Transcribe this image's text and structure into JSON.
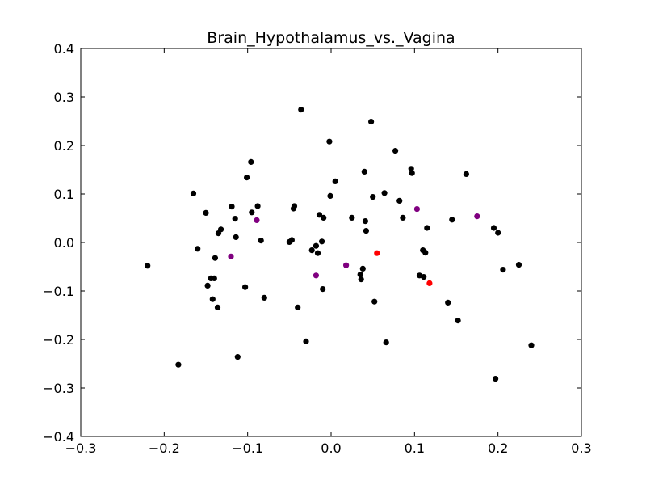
{
  "chart_data": {
    "type": "scatter",
    "title": "Brain_Hypothalamus_vs._Vagina",
    "xlabel": "",
    "ylabel": "",
    "xlim": [
      -0.3,
      0.3
    ],
    "ylim": [
      -0.4,
      0.4
    ],
    "xticks": [
      -0.3,
      -0.2,
      -0.1,
      0.0,
      0.1,
      0.2,
      0.3
    ],
    "yticks": [
      -0.4,
      -0.3,
      -0.2,
      -0.1,
      0.0,
      0.1,
      0.2,
      0.3,
      0.4
    ],
    "xtick_labels": [
      "−0.3",
      "−0.2",
      "−0.1",
      "0.0",
      "0.1",
      "0.2",
      "0.3"
    ],
    "ytick_labels": [
      "−0.4",
      "−0.3",
      "−0.2",
      "−0.1",
      "0.0",
      "0.1",
      "0.2",
      "0.3",
      "0.4"
    ],
    "grid": false,
    "legend": "none",
    "series": [
      {
        "color": "#000000",
        "points": [
          [
            -0.22,
            -0.048
          ],
          [
            -0.183,
            -0.252
          ],
          [
            -0.165,
            0.101
          ],
          [
            -0.16,
            -0.013
          ],
          [
            -0.15,
            0.061
          ],
          [
            -0.148,
            -0.089
          ],
          [
            -0.144,
            -0.074
          ],
          [
            -0.142,
            -0.117
          ],
          [
            -0.14,
            -0.074
          ],
          [
            -0.139,
            -0.032
          ],
          [
            -0.136,
            -0.134
          ],
          [
            -0.135,
            0.019
          ],
          [
            -0.132,
            0.027
          ],
          [
            -0.119,
            0.074
          ],
          [
            -0.115,
            0.049
          ],
          [
            -0.114,
            0.011
          ],
          [
            -0.112,
            -0.236
          ],
          [
            -0.103,
            -0.092
          ],
          [
            -0.101,
            0.134
          ],
          [
            -0.096,
            0.166
          ],
          [
            -0.095,
            0.062
          ],
          [
            -0.088,
            0.075
          ],
          [
            -0.084,
            0.004
          ],
          [
            -0.08,
            -0.114
          ],
          [
            -0.05,
            0.001
          ],
          [
            -0.047,
            0.005
          ],
          [
            -0.045,
            0.07
          ],
          [
            -0.044,
            0.075
          ],
          [
            -0.04,
            -0.134
          ],
          [
            -0.036,
            0.274
          ],
          [
            -0.03,
            -0.204
          ],
          [
            -0.023,
            -0.016
          ],
          [
            -0.018,
            -0.007
          ],
          [
            -0.016,
            -0.022
          ],
          [
            -0.014,
            0.057
          ],
          [
            -0.011,
            0.002
          ],
          [
            -0.009,
            0.051
          ],
          [
            -0.01,
            -0.096
          ],
          [
            -0.002,
            0.208
          ],
          [
            -0.001,
            0.096
          ],
          [
            0.005,
            0.126
          ],
          [
            0.025,
            0.051
          ],
          [
            0.035,
            -0.066
          ],
          [
            0.036,
            -0.076
          ],
          [
            0.038,
            -0.054
          ],
          [
            0.04,
            0.146
          ],
          [
            0.041,
            0.044
          ],
          [
            0.042,
            0.024
          ],
          [
            0.048,
            0.249
          ],
          [
            0.05,
            0.094
          ],
          [
            0.052,
            -0.122
          ],
          [
            0.064,
            0.102
          ],
          [
            0.066,
            -0.206
          ],
          [
            0.077,
            0.189
          ],
          [
            0.082,
            0.086
          ],
          [
            0.086,
            0.051
          ],
          [
            0.096,
            0.152
          ],
          [
            0.097,
            0.143
          ],
          [
            0.106,
            -0.068
          ],
          [
            0.11,
            -0.016
          ],
          [
            0.111,
            -0.071
          ],
          [
            0.113,
            -0.021
          ],
          [
            0.115,
            0.03
          ],
          [
            0.14,
            -0.124
          ],
          [
            0.145,
            0.047
          ],
          [
            0.152,
            -0.161
          ],
          [
            0.162,
            0.141
          ],
          [
            0.195,
            0.03
          ],
          [
            0.197,
            -0.281
          ],
          [
            0.2,
            0.02
          ],
          [
            0.206,
            -0.056
          ],
          [
            0.225,
            -0.046
          ],
          [
            0.24,
            -0.212
          ]
        ]
      },
      {
        "color": "#800080",
        "points": [
          [
            -0.12,
            -0.029
          ],
          [
            -0.089,
            0.046
          ],
          [
            -0.018,
            -0.068
          ],
          [
            0.018,
            -0.047
          ],
          [
            0.103,
            0.069
          ],
          [
            0.175,
            0.054
          ]
        ]
      },
      {
        "color": "#ff0000",
        "points": [
          [
            0.055,
            -0.022
          ],
          [
            0.118,
            -0.084
          ]
        ]
      }
    ]
  }
}
